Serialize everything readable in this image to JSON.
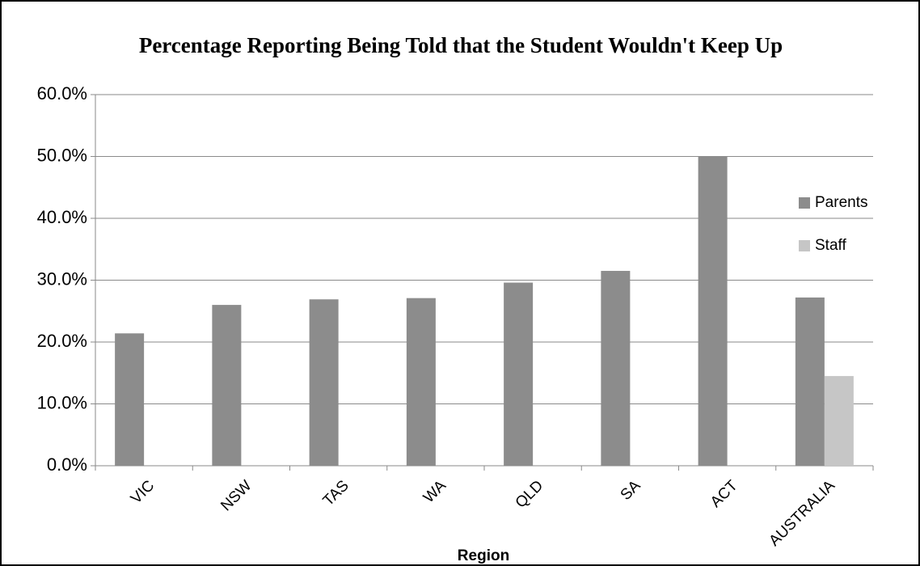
{
  "chart_data": {
    "type": "bar",
    "title": "Percentage Reporting Being Told that the Student Wouldn't Keep Up",
    "x_label": "Region",
    "categories": [
      "VIC",
      "NSW",
      "TAS",
      "WA",
      "QLD",
      "SA",
      "ACT",
      "AUSTRALIA"
    ],
    "series": [
      {
        "name": "Parents",
        "color": "#8c8c8c",
        "values": [
          21.4,
          26.0,
          26.9,
          27.1,
          29.6,
          31.5,
          50.0,
          27.2
        ]
      },
      {
        "name": "Staff",
        "color": "#c6c6c6",
        "values": [
          null,
          null,
          null,
          null,
          null,
          null,
          null,
          14.5
        ]
      }
    ],
    "ylim": [
      0,
      60
    ],
    "yticks": [
      {
        "value": 0,
        "label": "0.0%"
      },
      {
        "value": 10,
        "label": "10.0%"
      },
      {
        "value": 20,
        "label": "20.0%"
      },
      {
        "value": 30,
        "label": "30.0%"
      },
      {
        "value": 40,
        "label": "40.0%"
      },
      {
        "value": 50,
        "label": "50.0%"
      },
      {
        "value": 60,
        "label": "60.0%"
      }
    ],
    "grid": true,
    "legend": "right"
  }
}
